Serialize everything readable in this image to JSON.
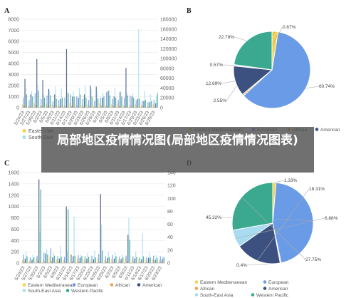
{
  "overlay_title": "局部地区疫情情况图(局部地区疫情情况图表)",
  "colors": {
    "Eastern Mediterranean": "#f6d24a",
    "European": "#6a9be6",
    "African": "#f2a450",
    "American": "#3c5180",
    "South-East Asia": "#a9dcf0",
    "Western Pacific": "#3aa98f",
    "Western Pacific B": "#3c5180"
  },
  "chart_data": [
    {
      "panel": "A",
      "type": "bar",
      "categories": [
        "5/24/23",
        "5/27/23",
        "5/30/23",
        "6/2/23",
        "6/5/23",
        "6/8/23",
        "6/11/23",
        "6/14/23",
        "6/17/23",
        "6/20/23",
        "6/23/23",
        "6/26/23",
        "6/29/23",
        "6/2/23",
        "6/5/23",
        "6/8/23",
        "6/11/23",
        "6/14/23",
        "6/17/23",
        "6/20/23",
        "6/23/23",
        "6/26/23",
        "6/29/23"
      ],
      "x_tick_labels": [
        "5/24/23",
        "5/27/23",
        "5/30/23",
        "6/2/23",
        "6/5/23",
        "6/8/23",
        "6/11/23",
        "6/14/23",
        "6/17/23",
        "6/20/23",
        "6/23/23",
        "6/26/23",
        "6/29/23",
        "6/2/23",
        "6/5/23",
        "6/8/23",
        "6/11/23",
        "6/14/23",
        "6/17/23",
        "6/20/23",
        "6/23/23",
        "6/26/23",
        "6/29/23"
      ],
      "ylim_left": [
        0,
        8000
      ],
      "ylim_right": [
        0,
        180000
      ],
      "left_ticks": [
        "0",
        "1000",
        "2000",
        "3000",
        "4000",
        "5000",
        "6000",
        "7000",
        "8000"
      ],
      "right_ticks": [
        "0",
        "20000",
        "40000",
        "60000",
        "80000",
        "100000",
        "120000",
        "140000",
        "160000",
        "180000"
      ],
      "series": [
        {
          "name": "Eastern Mediterranean",
          "axis": "left",
          "values": [
            300,
            250,
            400,
            200,
            350,
            300,
            250,
            200,
            450,
            300,
            250,
            300,
            200,
            400,
            250,
            300,
            350,
            250,
            200,
            300,
            250,
            200,
            300
          ]
        },
        {
          "name": "European",
          "axis": "left",
          "values": [
            900,
            700,
            1300,
            800,
            1100,
            600,
            700,
            900,
            1200,
            1000,
            800,
            700,
            600,
            900,
            1400,
            800,
            700,
            900,
            1100,
            700,
            600,
            500,
            700
          ]
        },
        {
          "name": "African",
          "axis": "left",
          "values": [
            150,
            100,
            200,
            120,
            180,
            100,
            140,
            120,
            160,
            130,
            110,
            120,
            100,
            150,
            120,
            140,
            130,
            120,
            110,
            100,
            120,
            90,
            100
          ]
        },
        {
          "name": "American",
          "axis": "left",
          "values": [
            2600,
            1200,
            4400,
            2500,
            1700,
            1200,
            800,
            5300,
            1000,
            900,
            1200,
            2000,
            1900,
            900,
            1500,
            1000,
            1400,
            3600,
            1000,
            800,
            600,
            500,
            400
          ]
        },
        {
          "name": "South-East Asia",
          "axis": "left",
          "values": [
            1800,
            1500,
            2000,
            1200,
            1600,
            1900,
            1700,
            1400,
            1500,
            1800,
            2000,
            1700,
            1500,
            1300,
            1600,
            1800,
            1500,
            1400,
            1300,
            7100,
            1500,
            1200,
            1000
          ]
        },
        {
          "name": "Western Pacific",
          "axis": "left",
          "values": [
            1200,
            1000,
            1500,
            900,
            1100,
            800,
            900,
            1300,
            1000,
            1200,
            900,
            1000,
            800,
            1000,
            1100,
            900,
            1000,
            1100,
            900,
            800,
            700,
            600,
            1300
          ]
        }
      ],
      "legend_visible": [
        "Eastern Me...",
        "South-East"
      ]
    },
    {
      "panel": "B",
      "type": "pie",
      "labels": [
        "Eastern Mediterranean",
        "European",
        "African",
        "American",
        "South-East Asia",
        "Western Pacific"
      ],
      "values": [
        2.55,
        60.74,
        0.67,
        12.69,
        0.57,
        22.78
      ],
      "value_labels": [
        "2.55%",
        "60.74%",
        "0.67%",
        "12.69%",
        "0.57%",
        "22.78%"
      ],
      "legend": [
        "Eastern Mediterranean",
        "European",
        "African",
        "American"
      ]
    },
    {
      "panel": "C",
      "type": "bar",
      "categories": [
        "5/24/23",
        "5/27/23",
        "5/30/23",
        "6/2/23",
        "6/5/23",
        "6/8/23",
        "6/11/23",
        "6/14/23",
        "6/17/23",
        "6/20/23",
        "6/23/23",
        "6/26/23",
        "6/29/23",
        "6/2/23",
        "6/5/23",
        "6/8/23",
        "6/11/23",
        "6/14/23",
        "6/17/23",
        "6/20/23",
        "6/23/23"
      ],
      "x_tick_labels": [
        "5/24/23",
        "5/27/23",
        "5/30/23",
        "6/2/23",
        "6/5/23",
        "6/8/23",
        "6/11/23",
        "6/14/23",
        "6/17/23",
        "6/20/23",
        "6/23/23",
        "6/26/23",
        "6/29/23",
        "6/2/23",
        "6/5/23",
        "6/8/23",
        "6/11/23",
        "6/14/23",
        "6/17/23",
        "6/20/23",
        "6/23/23"
      ],
      "ylim_left": [
        0,
        1600
      ],
      "ylim_right": [
        0,
        140
      ],
      "left_ticks": [
        "0",
        "200",
        "400",
        "600",
        "800",
        "1000",
        "1200",
        "1400",
        "1600"
      ],
      "right_ticks": [
        "0",
        "20",
        "40",
        "60",
        "80",
        "100",
        "120",
        "140"
      ],
      "series": [
        {
          "name": "Eastern Mediterranean",
          "axis": "left",
          "values": [
            60,
            40,
            80,
            50,
            120,
            70,
            60,
            160,
            90,
            70,
            60,
            80,
            50,
            70,
            60,
            90,
            70,
            80,
            60,
            70,
            50
          ]
        },
        {
          "name": "European",
          "axis": "left",
          "values": [
            150,
            100,
            130,
            180,
            260,
            120,
            110,
            150,
            140,
            120,
            130,
            160,
            120,
            140,
            110,
            130,
            120,
            100,
            110,
            130,
            120
          ]
        },
        {
          "name": "African",
          "axis": "left",
          "values": [
            30,
            20,
            40,
            25,
            35,
            30,
            20,
            30,
            25,
            30,
            20,
            25,
            30,
            20,
            25,
            30,
            20,
            25,
            20,
            25,
            20
          ]
        },
        {
          "name": "American",
          "axis": "left",
          "values": [
            80,
            60,
            1480,
            170,
            100,
            80,
            1000,
            120,
            90,
            80,
            70,
            1220,
            90,
            80,
            70,
            500,
            80,
            70,
            90,
            60,
            70
          ]
        },
        {
          "name": "South-East Asia",
          "axis": "left",
          "values": [
            200,
            150,
            560,
            250,
            180,
            300,
            200,
            820,
            150,
            180,
            220,
            680,
            200,
            180,
            160,
            800,
            200,
            520,
            180,
            140,
            120
          ]
        },
        {
          "name": "Western Pacific",
          "axis": "left",
          "values": [
            120,
            100,
            1300,
            150,
            130,
            110,
            950,
            130,
            120,
            110,
            100,
            220,
            110,
            120,
            100,
            410,
            110,
            120,
            100,
            90,
            100
          ]
        }
      ],
      "legend": [
        "Eastern Mediterranean",
        "European",
        "African",
        "American",
        "South-East Asia",
        "Western Pacific"
      ]
    },
    {
      "panel": "D",
      "type": "pie",
      "labels": [
        "Eastern Mediterranean",
        "European",
        "African",
        "American",
        "South-East Asia",
        "Western Pacific"
      ],
      "values": [
        1.33,
        45.32,
        0.4,
        18.31,
        6.88,
        27.75
      ],
      "value_labels": [
        "1.33%",
        "45.32%",
        "0.4%",
        "18.31%",
        "6.88%",
        "27.75%"
      ],
      "legend": [
        "Eastern Mediterranean",
        "European",
        "African",
        "American",
        "South-East Asia",
        "Western Pacific"
      ]
    }
  ],
  "panel_labels": [
    "A",
    "B",
    "C",
    "D"
  ]
}
